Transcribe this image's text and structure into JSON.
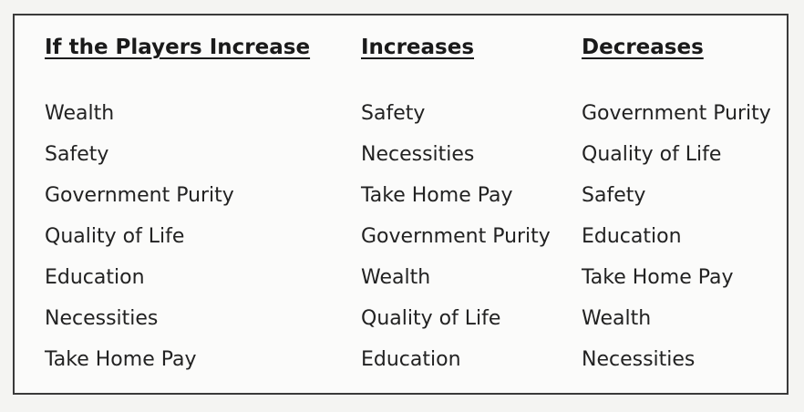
{
  "table": {
    "columns": [
      {
        "heading": "If the Players Increase",
        "items": [
          "Wealth",
          "Safety",
          "Government Purity",
          "Quality of Life",
          "Education",
          "Necessities",
          "Take Home Pay"
        ]
      },
      {
        "heading": "Increases",
        "items": [
          "Safety",
          "Necessities",
          "Take Home Pay",
          "Government Purity",
          "Wealth",
          "Quality of Life",
          "Education"
        ]
      },
      {
        "heading": "Decreases",
        "items": [
          "Government Purity",
          "Quality of Life",
          "Safety",
          "Education",
          "Take Home Pay",
          "Wealth",
          "Necessities"
        ]
      }
    ]
  }
}
